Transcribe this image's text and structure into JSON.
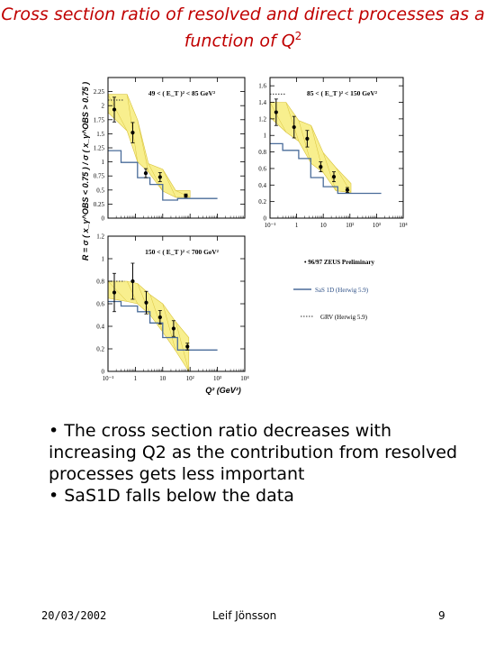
{
  "slide": {
    "title_main": "Cross section ratio of resolved and direct processes as a function of Q",
    "title_sup": "2",
    "bullets": [
      "• The cross section ratio decreases with increasing Q2 as the contribution from resolved processes gets less important",
      "• SaS1D falls below the data"
    ],
    "footer_date": "20/03/2002",
    "footer_author": "Leif Jönsson",
    "footer_page": "9"
  },
  "chart_data": {
    "type": "line",
    "ylabel": "R = σ ( x_γ^OBS < 0.75 ) / σ ( x_γ^OBS > 0.75 )",
    "xlabel": "Q² (GeV²)",
    "xscale": "log",
    "xlim": [
      0.1,
      10000
    ],
    "xticks": [
      "10⁻¹",
      "1",
      "10",
      "10²",
      "10³",
      "10⁴"
    ],
    "legend": {
      "placement": "bottom-right",
      "entries": [
        {
          "label": "• 96/97 ZEUS Preliminary",
          "style": "points"
        },
        {
          "label": "SaS 1D (Herwig 5.9)",
          "style": "solid",
          "color": "#4a6c9a"
        },
        {
          "label": "GRV (Herwig 5.9)",
          "style": "dotted",
          "color": "#333333"
        }
      ]
    },
    "panels": [
      {
        "label": "49 < ( E_T )² < 85 GeV²",
        "ylim": [
          0,
          2.5
        ],
        "yticks": [
          0,
          0.25,
          0.5,
          0.75,
          1,
          1.25,
          1.5,
          1.75,
          2,
          2.25
        ],
        "data": [
          {
            "x": 0.17,
            "y": 1.93,
            "err": 0.22
          },
          {
            "x": 0.8,
            "y": 1.52,
            "err": 0.18
          },
          {
            "x": 2.4,
            "y": 0.8,
            "err": 0.08
          },
          {
            "x": 8,
            "y": 0.73,
            "err": 0.08
          },
          {
            "x": 70,
            "y": 0.4,
            "err": 0.03
          }
        ],
        "band_upper": [
          [
            0.1,
            2.2
          ],
          [
            0.5,
            2.2
          ],
          [
            1.2,
            1.75
          ],
          [
            3,
            0.97
          ],
          [
            10,
            0.87
          ],
          [
            30,
            0.49
          ],
          [
            100,
            0.49
          ]
        ],
        "band_lower": [
          [
            0.1,
            1.88
          ],
          [
            0.5,
            1.55
          ],
          [
            1.2,
            1.0
          ],
          [
            3,
            0.82
          ],
          [
            10,
            0.48
          ],
          [
            30,
            0.37
          ],
          [
            100,
            0.37
          ]
        ],
        "sas1d": [
          [
            0.1,
            1.2
          ],
          [
            0.3,
            1.2
          ],
          [
            0.3,
            0.99
          ],
          [
            1.2,
            0.99
          ],
          [
            1.2,
            0.72
          ],
          [
            3.4,
            0.72
          ],
          [
            3.4,
            0.6
          ],
          [
            10,
            0.6
          ],
          [
            10,
            0.32
          ],
          [
            35,
            0.32
          ],
          [
            35,
            0.35
          ],
          [
            1000,
            0.35
          ]
        ],
        "grv": [
          [
            0.1,
            2.1
          ],
          [
            0.35,
            2.1
          ]
        ]
      },
      {
        "label": "85 < ( E_T )² < 150 GeV²",
        "ylim": [
          0,
          1.7
        ],
        "yticks": [
          0,
          0.2,
          0.4,
          0.6,
          0.8,
          1,
          1.2,
          1.4,
          1.6
        ],
        "data": [
          {
            "x": 0.17,
            "y": 1.28,
            "err": 0.16
          },
          {
            "x": 0.8,
            "y": 1.1,
            "err": 0.13
          },
          {
            "x": 2.5,
            "y": 0.96,
            "err": 0.1
          },
          {
            "x": 8,
            "y": 0.62,
            "err": 0.06
          },
          {
            "x": 25,
            "y": 0.5,
            "err": 0.06
          },
          {
            "x": 80,
            "y": 0.34,
            "err": 0.03
          }
        ],
        "band_upper": [
          [
            0.1,
            1.4
          ],
          [
            0.4,
            1.4
          ],
          [
            1.2,
            1.18
          ],
          [
            3.5,
            1.12
          ],
          [
            10,
            0.79
          ],
          [
            30,
            0.61
          ],
          [
            110,
            0.42
          ]
        ],
        "band_lower": [
          [
            0.1,
            1.22
          ],
          [
            0.4,
            1.04
          ],
          [
            1.2,
            0.93
          ],
          [
            3.5,
            0.66
          ],
          [
            10,
            0.55
          ],
          [
            30,
            0.33
          ],
          [
            110,
            0.31
          ]
        ],
        "sas1d": [
          [
            0.1,
            0.9
          ],
          [
            0.3,
            0.9
          ],
          [
            0.3,
            0.82
          ],
          [
            1.2,
            0.82
          ],
          [
            1.2,
            0.72
          ],
          [
            3.4,
            0.72
          ],
          [
            3.4,
            0.49
          ],
          [
            10,
            0.49
          ],
          [
            10,
            0.38
          ],
          [
            35,
            0.38
          ],
          [
            35,
            0.3
          ],
          [
            1500,
            0.3
          ]
        ],
        "grv": [
          [
            0.1,
            1.5
          ],
          [
            0.4,
            1.5
          ]
        ]
      },
      {
        "label": "150 < ( E_T )² < 700 GeV²",
        "ylim": [
          0,
          1.2
        ],
        "yticks": [
          0,
          0.2,
          0.4,
          0.6,
          0.8,
          1,
          1.2
        ],
        "data": [
          {
            "x": 0.17,
            "y": 0.7,
            "err": 0.17
          },
          {
            "x": 0.8,
            "y": 0.8,
            "err": 0.16
          },
          {
            "x": 2.5,
            "y": 0.61,
            "err": 0.1
          },
          {
            "x": 8,
            "y": 0.48,
            "err": 0.06
          },
          {
            "x": 25,
            "y": 0.38,
            "err": 0.07
          },
          {
            "x": 80,
            "y": 0.22,
            "err": 0.03
          }
        ],
        "band_upper": [
          [
            0.1,
            0.8
          ],
          [
            0.5,
            0.8
          ],
          [
            1.2,
            0.78
          ],
          [
            3.5,
            0.68
          ],
          [
            10,
            0.6
          ],
          [
            30,
            0.44
          ],
          [
            90,
            0.3
          ]
        ],
        "band_lower": [
          [
            0.1,
            0.65
          ],
          [
            0.5,
            0.62
          ],
          [
            1.2,
            0.6
          ],
          [
            3.5,
            0.5
          ],
          [
            10,
            0.35
          ],
          [
            30,
            0.18
          ],
          [
            90,
            0.0
          ]
        ],
        "sas1d": [
          [
            0.1,
            0.62
          ],
          [
            0.3,
            0.62
          ],
          [
            0.3,
            0.58
          ],
          [
            1.2,
            0.58
          ],
          [
            1.2,
            0.53
          ],
          [
            3.4,
            0.53
          ],
          [
            3.4,
            0.43
          ],
          [
            10,
            0.43
          ],
          [
            10,
            0.3
          ],
          [
            35,
            0.3
          ],
          [
            35,
            0.19
          ],
          [
            1000,
            0.19
          ]
        ],
        "grv": [
          [
            0.1,
            0.8
          ],
          [
            0.4,
            0.8
          ]
        ]
      }
    ]
  }
}
